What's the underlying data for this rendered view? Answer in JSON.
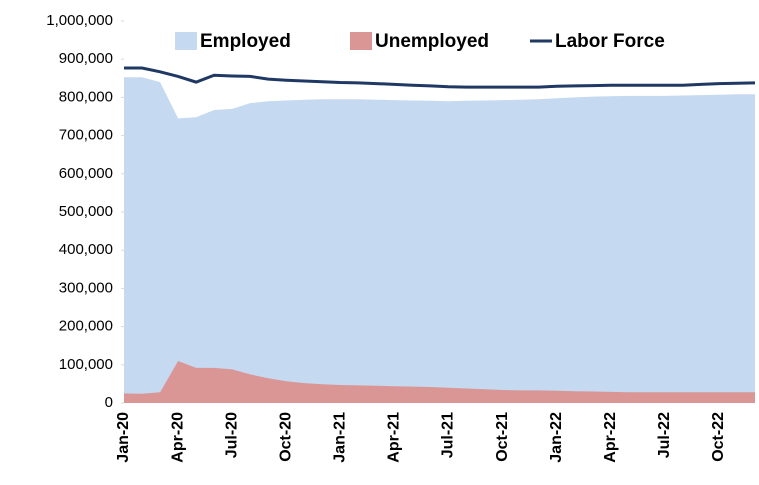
{
  "chart_data": {
    "type": "area",
    "categories": [
      "Jan-20",
      null,
      null,
      "Apr-20",
      null,
      null,
      "Jul-20",
      null,
      null,
      "Oct-20",
      null,
      null,
      "Jan-21",
      null,
      null,
      "Apr-21",
      null,
      null,
      "Jul-21",
      null,
      null,
      "Oct-21",
      null,
      null,
      "Jan-22",
      null,
      null,
      "Apr-22",
      null,
      null,
      "Jul-22",
      null,
      null,
      "Oct-22",
      null,
      null
    ],
    "series": [
      {
        "name": "Employed",
        "type": "area",
        "color": "#c5d9f1",
        "values": [
          853000,
          853000,
          840000,
          745000,
          748000,
          767000,
          770000,
          785000,
          790000,
          792000,
          794000,
          795000,
          795000,
          795000,
          794000,
          793000,
          792000,
          791000,
          790000,
          791000,
          792000,
          793000,
          794000,
          795000,
          798000,
          800000,
          802000,
          803000,
          804000,
          804000,
          804000,
          805000,
          806000,
          807000,
          808000,
          808000
        ]
      },
      {
        "name": "Unemployed",
        "type": "area",
        "color": "#da9694",
        "values": [
          25000,
          24000,
          28000,
          110000,
          92000,
          92000,
          88000,
          75000,
          65000,
          57000,
          52000,
          49000,
          47000,
          46000,
          45000,
          44000,
          43000,
          42000,
          40000,
          38000,
          36000,
          34000,
          33000,
          33000,
          32000,
          31000,
          30000,
          29000,
          28000,
          28000,
          28000,
          28000,
          28000,
          28000,
          28000,
          28000
        ]
      },
      {
        "name": "Labor Force",
        "type": "line",
        "color": "#1f3864",
        "values": [
          877000,
          877000,
          867000,
          855000,
          840000,
          858000,
          856000,
          855000,
          848000,
          845000,
          843000,
          841000,
          839000,
          838000,
          836000,
          834000,
          832000,
          830000,
          828000,
          827000,
          827000,
          827000,
          827000,
          827000,
          829000,
          830000,
          831000,
          832000,
          832000,
          832000,
          832000,
          832000,
          834000,
          836000,
          837000,
          838000
        ]
      }
    ],
    "ylim": [
      0,
      1000000
    ],
    "yticks": [
      0,
      {
        "value": 100000,
        "label": "100,000"
      },
      {
        "value": 200000,
        "label": "200,000"
      },
      {
        "value": 300000,
        "label": "300,000"
      },
      {
        "value": 400000,
        "label": "400,000"
      },
      {
        "value": 500000,
        "label": "500,000"
      },
      {
        "value": 600000,
        "label": "600,000"
      },
      {
        "value": 700000,
        "label": "700,000"
      },
      {
        "value": 800000,
        "label": "800,000"
      },
      {
        "value": 900000,
        "label": "900,000"
      },
      {
        "value": 1000000,
        "label": "1,000,000"
      }
    ],
    "legend": "top"
  }
}
